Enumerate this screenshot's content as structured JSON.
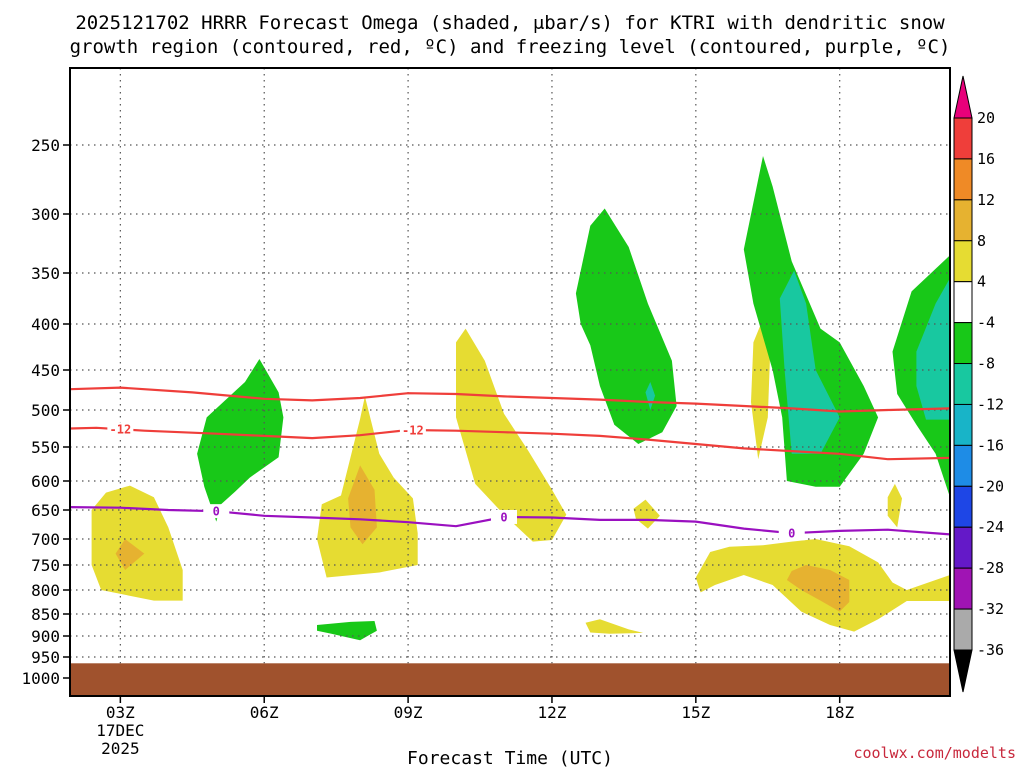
{
  "chart_data": {
    "type": "heatmap",
    "title_line1": "2025121702 HRRR Forecast Omega (shaded, μbar/s) for KTRI with dendritic snow",
    "title_line2": "growth region (contoured, red, ºC) and freezing level (contoured, purple, ºC)",
    "xlabel": "Forecast Time (UTC)",
    "credit": "coolwx.com/modelts",
    "x_hours": [
      1.95,
      20.3
    ],
    "y_pressure_levels": [
      250,
      300,
      350,
      400,
      450,
      500,
      550,
      600,
      650,
      700,
      750,
      800,
      850,
      900,
      950,
      1000
    ],
    "y_tick_labels": [
      "250",
      "300",
      "350",
      "400",
      "450",
      "500",
      "550",
      "600",
      "650",
      "700",
      "750",
      "800",
      "850",
      "900",
      "950",
      "1000"
    ],
    "x_ticks": [
      {
        "hour": 3,
        "label": "03Z",
        "date": "17DEC",
        "year": "2025"
      },
      {
        "hour": 6,
        "label": "06Z"
      },
      {
        "hour": 9,
        "label": "09Z"
      },
      {
        "hour": 12,
        "label": "12Z"
      },
      {
        "hour": 15,
        "label": "15Z"
      },
      {
        "hour": 18,
        "label": "18Z"
      }
    ],
    "colorbar": {
      "labels": [
        "20",
        "16",
        "12",
        "8",
        "4",
        "-4",
        "-8",
        "-12",
        "-16",
        "-20",
        "-24",
        "-28",
        "-32",
        "-36"
      ],
      "colors": [
        "#e8007a",
        "#ef3e3a",
        "#ef8a26",
        "#e6b230",
        "#e6dc32",
        "#ffffff",
        "#18c818",
        "#18c8a0",
        "#18b4c8",
        "#1e8ce6",
        "#1e46e6",
        "#6419c8",
        "#a014b4",
        "#aaaaaa",
        "#000000"
      ]
    },
    "ground": {
      "from_pressure": 965,
      "color": "#a0522d"
    },
    "omega_regions": [
      {
        "name": "yellow-0300",
        "color": "#e6dc32",
        "pts": [
          [
            2.4,
            650
          ],
          [
            2.7,
            620
          ],
          [
            3.2,
            608
          ],
          [
            3.7,
            628
          ],
          [
            4.0,
            680
          ],
          [
            4.3,
            760
          ],
          [
            4.3,
            822
          ],
          [
            3.7,
            822
          ],
          [
            2.6,
            800
          ],
          [
            2.4,
            750
          ]
        ]
      },
      {
        "name": "orange-0300",
        "color": "#e6b230",
        "pts": [
          [
            2.9,
            728
          ],
          [
            3.1,
            700
          ],
          [
            3.5,
            728
          ],
          [
            3.1,
            760
          ]
        ]
      },
      {
        "name": "green-0530",
        "color": "#18c818",
        "pts": [
          [
            4.6,
            560
          ],
          [
            4.8,
            510
          ],
          [
            5.6,
            465
          ],
          [
            5.9,
            438
          ],
          [
            6.3,
            478
          ],
          [
            6.4,
            510
          ],
          [
            6.3,
            565
          ],
          [
            5.7,
            595
          ],
          [
            5.4,
            618
          ],
          [
            5.1,
            640
          ],
          [
            5.0,
            670
          ],
          [
            4.75,
            610
          ]
        ]
      },
      {
        "name": "yellow-0800",
        "color": "#e6dc32",
        "pts": [
          [
            7.2,
            640
          ],
          [
            7.6,
            625
          ],
          [
            8.0,
            512
          ],
          [
            8.1,
            483
          ],
          [
            8.4,
            560
          ],
          [
            8.7,
            595
          ],
          [
            9.1,
            630
          ],
          [
            9.2,
            690
          ],
          [
            9.2,
            750
          ],
          [
            8.4,
            765
          ],
          [
            7.3,
            775
          ],
          [
            7.1,
            700
          ]
        ]
      },
      {
        "name": "orange-0800",
        "color": "#e6b230",
        "pts": [
          [
            7.75,
            630
          ],
          [
            8.0,
            577
          ],
          [
            8.3,
            615
          ],
          [
            8.35,
            680
          ],
          [
            8.05,
            710
          ],
          [
            7.8,
            680
          ]
        ]
      },
      {
        "name": "green-0800-low",
        "color": "#18c818",
        "pts": [
          [
            7.1,
            875
          ],
          [
            7.8,
            868
          ],
          [
            8.3,
            866
          ],
          [
            8.35,
            888
          ],
          [
            8.0,
            910
          ],
          [
            7.4,
            895
          ],
          [
            7.1,
            888
          ]
        ]
      },
      {
        "name": "yellow-1030",
        "color": "#e6dc32",
        "pts": [
          [
            10.0,
            420
          ],
          [
            10.2,
            405
          ],
          [
            10.6,
            440
          ],
          [
            11.0,
            505
          ],
          [
            11.5,
            555
          ],
          [
            12.0,
            615
          ],
          [
            12.3,
            658
          ],
          [
            12.0,
            702
          ],
          [
            11.6,
            705
          ],
          [
            11.0,
            658
          ],
          [
            10.4,
            605
          ],
          [
            10.0,
            510
          ]
        ]
      },
      {
        "name": "green-1330",
        "color": "#18c818",
        "pts": [
          [
            12.5,
            370
          ],
          [
            12.8,
            310
          ],
          [
            13.1,
            296
          ],
          [
            13.6,
            328
          ],
          [
            14.0,
            380
          ],
          [
            14.5,
            440
          ],
          [
            14.6,
            495
          ],
          [
            14.3,
            530
          ],
          [
            13.8,
            546
          ],
          [
            13.3,
            520
          ],
          [
            13.0,
            470
          ],
          [
            12.8,
            423
          ],
          [
            12.6,
            400
          ]
        ]
      },
      {
        "name": "cyan-1400",
        "color": "#18c8a0",
        "pts": [
          [
            13.95,
            478
          ],
          [
            14.05,
            465
          ],
          [
            14.15,
            482
          ],
          [
            14.05,
            500
          ]
        ]
      },
      {
        "name": "yellow-1400",
        "color": "#e6dc32",
        "pts": [
          [
            13.7,
            648
          ],
          [
            13.95,
            632
          ],
          [
            14.25,
            660
          ],
          [
            14.0,
            682
          ],
          [
            13.75,
            665
          ]
        ]
      },
      {
        "name": "yellow-1330-low",
        "color": "#e6dc32",
        "pts": [
          [
            12.7,
            870
          ],
          [
            13.0,
            862
          ],
          [
            13.6,
            885
          ],
          [
            13.9,
            893
          ],
          [
            13.2,
            895
          ],
          [
            12.8,
            892
          ]
        ]
      },
      {
        "name": "yellow-1615",
        "color": "#e6dc32",
        "pts": [
          [
            16.2,
            420
          ],
          [
            16.4,
            395
          ],
          [
            16.55,
            430
          ],
          [
            16.5,
            510
          ],
          [
            16.3,
            568
          ],
          [
            16.15,
            490
          ]
        ]
      },
      {
        "name": "green-1700",
        "color": "#18c818",
        "pts": [
          [
            16.0,
            330
          ],
          [
            16.4,
            258
          ],
          [
            16.6,
            280
          ],
          [
            17.0,
            340
          ],
          [
            17.6,
            405
          ],
          [
            18.0,
            420
          ],
          [
            18.5,
            470
          ],
          [
            18.8,
            510
          ],
          [
            18.5,
            560
          ],
          [
            18.0,
            610
          ],
          [
            17.5,
            610
          ],
          [
            16.9,
            600
          ],
          [
            16.8,
            510
          ],
          [
            16.6,
            450
          ],
          [
            16.2,
            380
          ]
        ]
      },
      {
        "name": "cyan-1700",
        "color": "#18c8a0",
        "pts": [
          [
            16.75,
            375
          ],
          [
            17.05,
            348
          ],
          [
            17.3,
            380
          ],
          [
            17.5,
            450
          ],
          [
            18.0,
            510
          ],
          [
            17.6,
            560
          ],
          [
            17.0,
            560
          ],
          [
            16.85,
            450
          ]
        ]
      },
      {
        "name": "yellow-1900",
        "color": "#e6dc32",
        "pts": [
          [
            19.0,
            628
          ],
          [
            19.15,
            605
          ],
          [
            19.3,
            630
          ],
          [
            19.2,
            680
          ],
          [
            19.0,
            660
          ]
        ]
      },
      {
        "name": "green-2000",
        "color": "#18c818",
        "pts": [
          [
            19.1,
            430
          ],
          [
            19.5,
            368
          ],
          [
            20.3,
            335
          ],
          [
            20.3,
            628
          ],
          [
            20.0,
            560
          ],
          [
            19.6,
            520
          ],
          [
            19.2,
            480
          ]
        ]
      },
      {
        "name": "cyan-2000",
        "color": "#18c8a0",
        "pts": [
          [
            19.6,
            430
          ],
          [
            20.0,
            380
          ],
          [
            20.3,
            355
          ],
          [
            20.3,
            513
          ],
          [
            19.8,
            513
          ],
          [
            19.6,
            470
          ]
        ]
      },
      {
        "name": "yellow-1700-low",
        "color": "#e6dc32",
        "pts": [
          [
            15.0,
            775
          ],
          [
            15.3,
            725
          ],
          [
            15.7,
            715
          ],
          [
            16.4,
            712
          ],
          [
            17.0,
            705
          ],
          [
            17.5,
            700
          ],
          [
            18.2,
            714
          ],
          [
            18.8,
            745
          ],
          [
            19.1,
            785
          ],
          [
            19.4,
            800
          ],
          [
            20.3,
            770
          ],
          [
            20.3,
            823
          ],
          [
            19.4,
            823
          ],
          [
            18.8,
            862
          ],
          [
            18.3,
            890
          ],
          [
            17.8,
            875
          ],
          [
            17.2,
            845
          ],
          [
            16.6,
            790
          ],
          [
            16.0,
            770
          ],
          [
            15.4,
            790
          ],
          [
            15.1,
            805
          ]
        ]
      },
      {
        "name": "orange-1700-low",
        "color": "#e6b230",
        "pts": [
          [
            17.0,
            762
          ],
          [
            17.3,
            750
          ],
          [
            17.8,
            760
          ],
          [
            18.2,
            780
          ],
          [
            18.2,
            825
          ],
          [
            18.0,
            845
          ],
          [
            17.6,
            822
          ],
          [
            17.2,
            800
          ],
          [
            16.9,
            780
          ]
        ]
      }
    ],
    "dgz_contours": [
      {
        "name": "dgz-upper",
        "color": "#ef3e3a",
        "label": "",
        "pts": [
          [
            1.95,
            474
          ],
          [
            3.0,
            472
          ],
          [
            4.5,
            478
          ],
          [
            6.0,
            486
          ],
          [
            7.0,
            488
          ],
          [
            8.0,
            485
          ],
          [
            9.0,
            479
          ],
          [
            10.0,
            480
          ],
          [
            11.0,
            483
          ],
          [
            12.0,
            485
          ],
          [
            13.0,
            487
          ],
          [
            14.0,
            490
          ],
          [
            15.0,
            492
          ],
          [
            16.0,
            495
          ],
          [
            17.0,
            498
          ],
          [
            18.0,
            502
          ],
          [
            19.0,
            500
          ],
          [
            20.3,
            498
          ]
        ]
      },
      {
        "name": "dgz-lower",
        "color": "#ef3e3a",
        "label": "-12",
        "label_hour": 3.0,
        "pts": [
          [
            1.95,
            525
          ],
          [
            2.5,
            524
          ],
          [
            3.5,
            528
          ],
          [
            5.0,
            532
          ],
          [
            6.0,
            535
          ],
          [
            7.0,
            538
          ],
          [
            8.0,
            534
          ],
          [
            9.0,
            527
          ],
          [
            10.0,
            528
          ],
          [
            11.0,
            530
          ],
          [
            12.0,
            532
          ],
          [
            13.0,
            535
          ],
          [
            14.0,
            540
          ],
          [
            15.0,
            546
          ],
          [
            16.0,
            552
          ],
          [
            17.0,
            556
          ],
          [
            18.0,
            560
          ],
          [
            19.0,
            568
          ],
          [
            20.3,
            566
          ]
        ]
      },
      {
        "name": "dgz-lower-label2",
        "color": "#ef3e3a",
        "label": "-12",
        "label_hour": 9.1,
        "pts": []
      }
    ],
    "freezing_level": {
      "name": "freezing-level",
      "color": "#9a10c0",
      "label": "0",
      "label_hours": [
        5.0,
        11.0,
        17.0
      ],
      "pts": [
        [
          1.95,
          645
        ],
        [
          3.0,
          646
        ],
        [
          4.0,
          650
        ],
        [
          5.0,
          652
        ],
        [
          6.0,
          660
        ],
        [
          7.0,
          663
        ],
        [
          8.0,
          666
        ],
        [
          9.0,
          671
        ],
        [
          10.0,
          678
        ],
        [
          11.0,
          662
        ],
        [
          12.0,
          663
        ],
        [
          13.0,
          667
        ],
        [
          14.0,
          667
        ],
        [
          15.0,
          670
        ],
        [
          16.0,
          682
        ],
        [
          17.0,
          690
        ],
        [
          18.0,
          686
        ],
        [
          19.0,
          684
        ],
        [
          20.3,
          692
        ]
      ]
    }
  }
}
